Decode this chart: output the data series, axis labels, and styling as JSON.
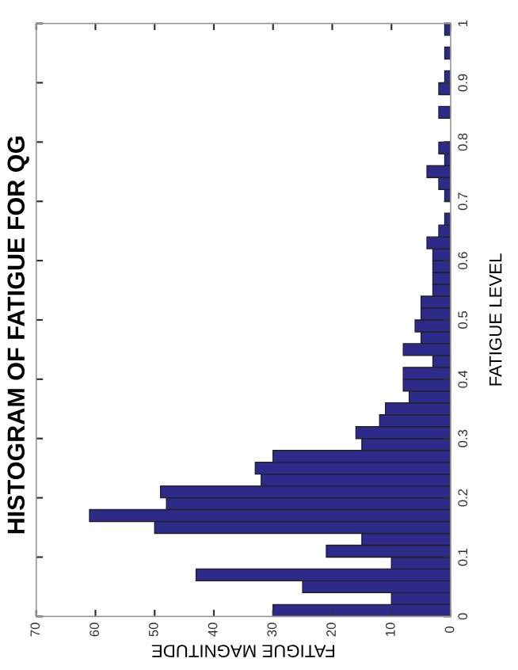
{
  "chart_data": {
    "type": "histogram",
    "orientation": "horizontal",
    "title": "HISTOGRAM OF FATIGUE FOR QG",
    "xlabel": "FATIGUE MAGNITUDE",
    "ylabel": "FATIGUE LEVEL",
    "bins": [
      0,
      0.02,
      0.04,
      0.06,
      0.08,
      0.1,
      0.12,
      0.14,
      0.16,
      0.18,
      0.2,
      0.22,
      0.24,
      0.26,
      0.28,
      0.3,
      0.32,
      0.34,
      0.36,
      0.38,
      0.4,
      0.42,
      0.44,
      0.46,
      0.48,
      0.5,
      0.52,
      0.54,
      0.56,
      0.58,
      0.6,
      0.62,
      0.64,
      0.66,
      0.68,
      0.7,
      0.72,
      0.74,
      0.76,
      0.78,
      0.8,
      0.82,
      0.84,
      0.86,
      0.88,
      0.9,
      0.92,
      0.94,
      0.96,
      0.98,
      1
    ],
    "values": [
      30,
      10,
      25,
      43,
      10,
      21,
      15,
      50,
      61,
      48,
      49,
      32,
      33,
      30,
      15,
      16,
      12,
      11,
      7,
      8,
      8,
      3,
      8,
      5,
      6,
      5,
      5,
      3,
      3,
      3,
      3,
      4,
      2,
      1,
      0,
      1,
      2,
      4,
      1,
      2,
      0,
      0,
      2,
      0,
      2,
      1,
      0,
      1,
      0,
      1
    ],
    "color": "#2e2a8a",
    "xlim": [
      70,
      0
    ],
    "xticks": [
      0,
      10,
      20,
      30,
      40,
      50,
      60,
      70
    ],
    "ylim": [
      0,
      1
    ],
    "yticks": [
      0,
      0.1,
      0.2,
      0.3,
      0.4,
      0.5,
      0.6,
      0.7,
      0.8,
      0.9,
      1
    ],
    "grid": false,
    "legend": false
  }
}
